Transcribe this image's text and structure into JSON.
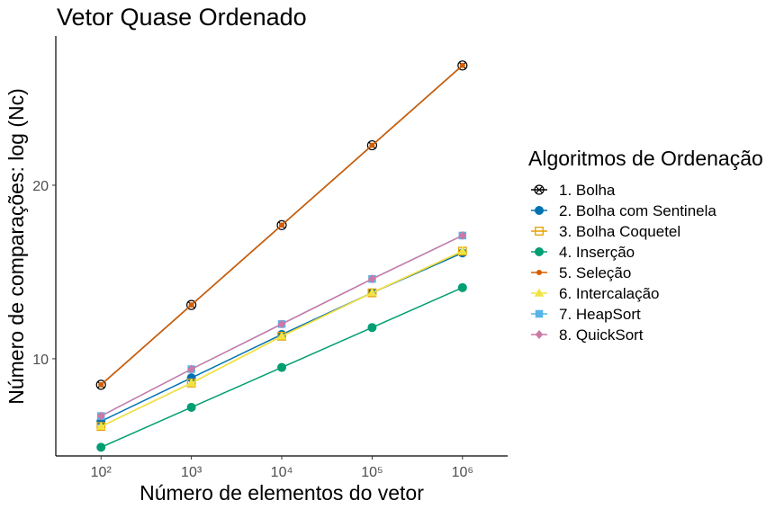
{
  "chart_data": {
    "type": "line",
    "title": "Vetor Quase Ordenado",
    "xlabel": "Número de elementos do vetor",
    "ylabel": "Número de comparações: log (Nc)",
    "x_scale": "log10",
    "x": [
      100,
      1000,
      10000,
      100000,
      1000000
    ],
    "x_tick_labels": [
      "10²",
      "10³",
      "10⁴",
      "10⁵",
      "10⁶"
    ],
    "xlim": [
      31.6,
      3162277
    ],
    "ylim": [
      4.4,
      28.6
    ],
    "y_ticks": [
      10,
      20
    ],
    "y_tick_labels": [
      "10",
      "20"
    ],
    "grid": false,
    "legend_title": "Algoritmos de Ordenação",
    "legend_position": "right",
    "series": [
      {
        "name": "1. Bolha",
        "color": "#000000",
        "marker": "circle-x",
        "values": [
          8.5,
          13.1,
          17.7,
          22.3,
          26.9
        ]
      },
      {
        "name": "2. Bolha com Sentinela",
        "color": "#0072B2",
        "marker": "circle",
        "values": [
          6.4,
          8.9,
          11.4,
          13.8,
          16.1
        ]
      },
      {
        "name": "3. Bolha Coquetel",
        "color": "#E69F00",
        "marker": "square-open",
        "values": [
          6.1,
          8.6,
          11.3,
          13.8,
          16.2
        ]
      },
      {
        "name": "4. Inserção",
        "color": "#009E73",
        "marker": "circle",
        "values": [
          4.9,
          7.2,
          9.5,
          11.8,
          14.1
        ]
      },
      {
        "name": "5. Seleção",
        "color": "#D55E00",
        "marker": "dot",
        "values": [
          8.5,
          13.1,
          17.7,
          22.3,
          26.9
        ]
      },
      {
        "name": "6. Intercalação",
        "color": "#F0E442",
        "marker": "triangle",
        "values": [
          6.1,
          8.6,
          11.3,
          13.8,
          16.2
        ]
      },
      {
        "name": "7. HeapSort",
        "color": "#56B4E9",
        "marker": "square",
        "values": [
          6.7,
          9.4,
          12.0,
          14.6,
          17.1
        ]
      },
      {
        "name": "8. QuickSort",
        "color": "#CC79A7",
        "marker": "diamond",
        "values": [
          6.7,
          9.4,
          12.0,
          14.6,
          17.1
        ]
      }
    ]
  }
}
